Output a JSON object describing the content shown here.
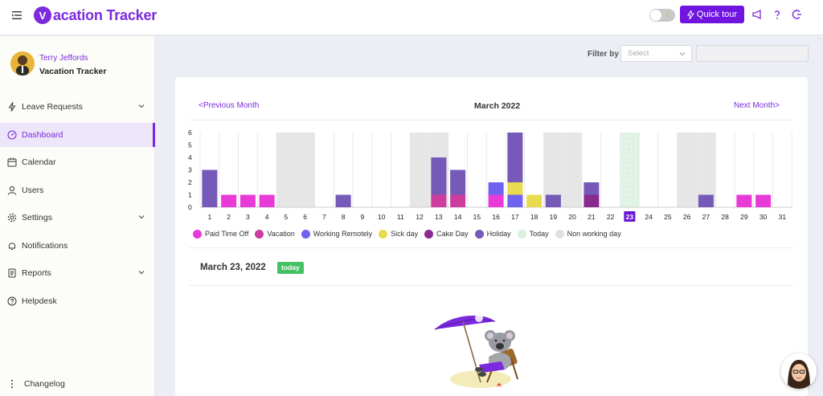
{
  "header": {
    "logo_letter": "V",
    "logo_text": "acation Tracker",
    "quick_tour_label": "Quick tour",
    "icons": [
      "menu-toggle-icon",
      "moon-icon",
      "lightning-icon",
      "megaphone-icon",
      "question-icon",
      "logout-icon"
    ]
  },
  "sidebar": {
    "user_name": "Terry Jeffords",
    "company_name": "Vacation Tracker",
    "items": [
      {
        "label": "Leave Requests",
        "icon": "lightning-icon",
        "has_chevron": true,
        "active": false
      },
      {
        "label": "Dashboard",
        "icon": "dashboard-icon",
        "has_chevron": false,
        "active": true
      },
      {
        "label": "Calendar",
        "icon": "calendar-icon",
        "has_chevron": false,
        "active": false
      },
      {
        "label": "Users",
        "icon": "user-icon",
        "has_chevron": false,
        "active": false
      },
      {
        "label": "Settings",
        "icon": "gear-icon",
        "has_chevron": true,
        "active": false
      },
      {
        "label": "Notifications",
        "icon": "bell-icon",
        "has_chevron": false,
        "active": false
      },
      {
        "label": "Reports",
        "icon": "report-icon",
        "has_chevron": true,
        "active": false
      },
      {
        "label": "Helpdesk",
        "icon": "help-icon",
        "has_chevron": false,
        "active": false
      }
    ],
    "changelog_label": "Changelog"
  },
  "filter": {
    "label": "Filter by",
    "select_placeholder": "Select",
    "input_value": ""
  },
  "calendar": {
    "prev_label": "Previous Month",
    "next_label": "Next Month",
    "month_title": "March 2022"
  },
  "chart_data": {
    "type": "bar",
    "stacked": true,
    "categories": [
      "1",
      "2",
      "3",
      "4",
      "5",
      "6",
      "7",
      "8",
      "9",
      "10",
      "11",
      "12",
      "13",
      "14",
      "15",
      "16",
      "17",
      "18",
      "19",
      "20",
      "21",
      "22",
      "23",
      "24",
      "25",
      "26",
      "27",
      "28",
      "29",
      "30",
      "31"
    ],
    "ylim": [
      0,
      6
    ],
    "yticks": [
      "0",
      "1",
      "2",
      "3",
      "4",
      "5",
      "6"
    ],
    "today": "23",
    "non_working_days": [
      "5",
      "6",
      "12",
      "13",
      "19",
      "20",
      "26",
      "27"
    ],
    "series": [
      {
        "name": "Paid Time Off",
        "color": "#e83ad7",
        "values": [
          0,
          1,
          1,
          1,
          0,
          0,
          0,
          0,
          0,
          0,
          0,
          0,
          0,
          0,
          0,
          1,
          0,
          0,
          0,
          0,
          0,
          0,
          0,
          0,
          0,
          0,
          0,
          0,
          1,
          1,
          0
        ]
      },
      {
        "name": "Vacation",
        "color": "#cc3d9f",
        "values": [
          0,
          0,
          0,
          0,
          0,
          0,
          0,
          0,
          0,
          0,
          0,
          0,
          1,
          1,
          0,
          0,
          0,
          0,
          0,
          0,
          0,
          0,
          0,
          0,
          0,
          0,
          0,
          0,
          0,
          0,
          0
        ]
      },
      {
        "name": "Working Remotely",
        "color": "#6f62ef",
        "values": [
          0,
          0,
          0,
          0,
          0,
          0,
          0,
          0,
          0,
          0,
          0,
          0,
          0,
          0,
          0,
          1,
          1,
          0,
          0,
          0,
          0,
          0,
          0,
          0,
          0,
          0,
          0,
          0,
          0,
          0,
          0
        ]
      },
      {
        "name": "Sick day",
        "color": "#e9db4f",
        "values": [
          0,
          0,
          0,
          0,
          0,
          0,
          0,
          0,
          0,
          0,
          0,
          0,
          0,
          0,
          0,
          0,
          1,
          1,
          0,
          0,
          0,
          0,
          0,
          0,
          0,
          0,
          0,
          0,
          0,
          0,
          0
        ]
      },
      {
        "name": "Cake Day",
        "color": "#8b2a8f",
        "values": [
          0,
          0,
          0,
          0,
          0,
          0,
          0,
          0,
          0,
          0,
          0,
          0,
          0,
          0,
          0,
          0,
          0,
          0,
          0,
          0,
          1,
          0,
          0,
          0,
          0,
          0,
          0,
          0,
          0,
          0,
          0
        ]
      },
      {
        "name": "Holiday",
        "color": "#7659b8",
        "values": [
          3,
          0,
          0,
          0,
          0,
          0,
          0,
          1,
          0,
          0,
          0,
          0,
          3,
          2,
          0,
          0,
          4,
          0,
          1,
          0,
          1,
          0,
          0,
          0,
          0,
          0,
          1,
          0,
          0,
          0,
          0
        ]
      }
    ],
    "legend": [
      {
        "name": "Paid Time Off",
        "color": "#e83ad7"
      },
      {
        "name": "Vacation",
        "color": "#cc3d9f"
      },
      {
        "name": "Working Remotely",
        "color": "#6f62ef"
      },
      {
        "name": "Sick day",
        "color": "#e9db4f"
      },
      {
        "name": "Cake Day",
        "color": "#8b2a8f"
      },
      {
        "name": "Holiday",
        "color": "#7659b8"
      },
      {
        "name": "Today",
        "color": "#d8f0dc"
      },
      {
        "name": "Non working day",
        "color": "#e0e0e0"
      }
    ]
  },
  "day_detail": {
    "date_title": "March 23, 2022",
    "badge": "today"
  },
  "colors": {
    "accent": "#7b2bdc",
    "button": "#7015e0",
    "today_badge": "#45c165"
  }
}
